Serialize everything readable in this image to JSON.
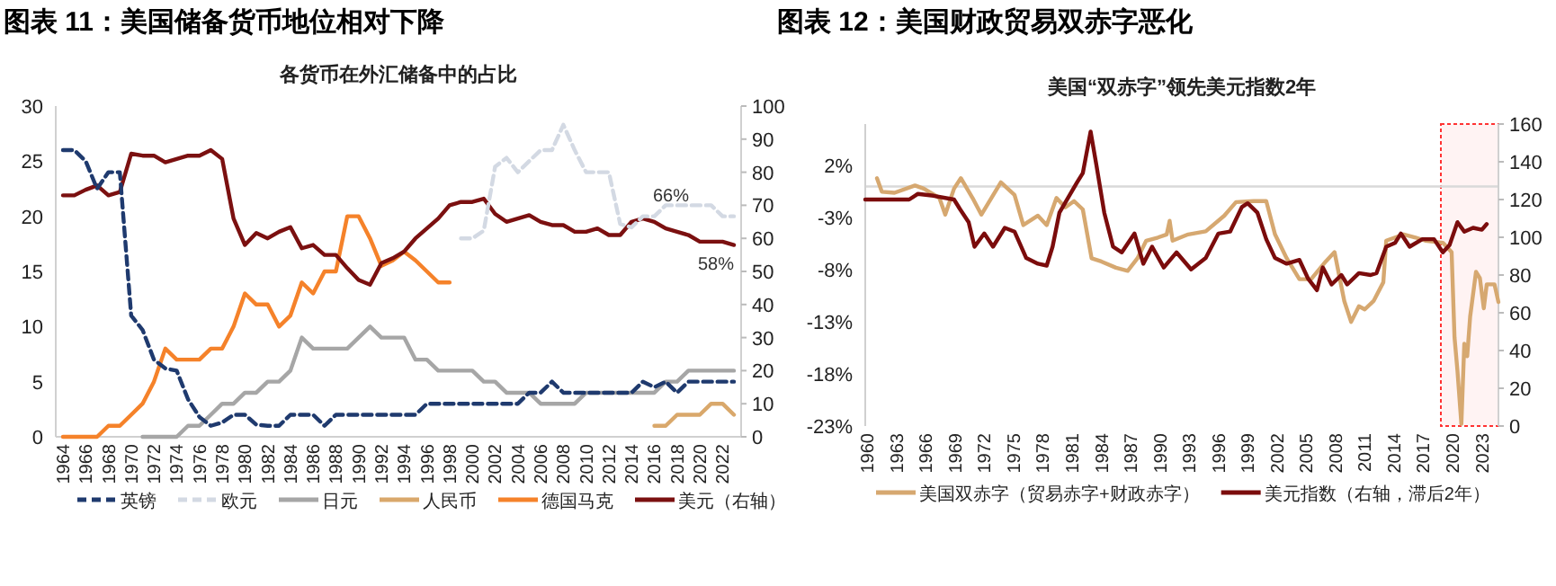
{
  "chart_data": [
    {
      "type": "line",
      "title": "图表 11：美国储备货币地位相对下降",
      "subtitle": "各货币在外汇储备中的占比",
      "categories": [
        "1964",
        null,
        "1966",
        null,
        "1968",
        null,
        "1970",
        null,
        "1972",
        null,
        "1974",
        null,
        "1976",
        null,
        "1978",
        null,
        "1980",
        null,
        "1982",
        null,
        "1984",
        null,
        "1986",
        null,
        "1988",
        null,
        "1990",
        null,
        "1992",
        null,
        "1994",
        null,
        "1996",
        null,
        "1998",
        null,
        "2000",
        null,
        "2002",
        null,
        "2004",
        null,
        "2006",
        null,
        "2008",
        null,
        "2010",
        null,
        "2012",
        null,
        "2014",
        null,
        "2016",
        null,
        "2018",
        null,
        "2020",
        null,
        "2022",
        null
      ],
      "series": [
        {
          "name": "英镑",
          "color": "#1f3a6e",
          "line_style": "dashed",
          "values": [
            26,
            26,
            25,
            22.5,
            24,
            24,
            11,
            9.7,
            7,
            6.2,
            6,
            3.4,
            1.8,
            1,
            1.3,
            2,
            2,
            1.1,
            1,
            1,
            2,
            2,
            2,
            1,
            2,
            2,
            2,
            2,
            2,
            2,
            2,
            2,
            3,
            3,
            3,
            3,
            3,
            3,
            3,
            3,
            3,
            4,
            4,
            5,
            4,
            4,
            4,
            4,
            4,
            4,
            4,
            5,
            4.5,
            5,
            4,
            5,
            5,
            5,
            5,
            5
          ]
        },
        {
          "name": "欧元",
          "color": "#d3d9e3",
          "line_style": "dashed",
          "values": [
            null,
            null,
            null,
            null,
            null,
            null,
            null,
            null,
            null,
            null,
            null,
            null,
            null,
            null,
            null,
            null,
            null,
            null,
            null,
            null,
            null,
            null,
            null,
            null,
            null,
            null,
            null,
            null,
            null,
            null,
            null,
            null,
            null,
            null,
            null,
            18,
            18,
            18.7,
            24.5,
            25.3,
            24,
            25,
            26,
            26,
            28.3,
            26,
            24,
            24,
            24,
            19.3,
            19,
            20,
            20,
            21,
            21,
            21,
            21,
            21,
            20,
            20
          ]
        },
        {
          "name": "日元",
          "color": "#a6a6a6",
          "line_style": "solid",
          "values": [
            null,
            null,
            null,
            null,
            null,
            null,
            null,
            0,
            0,
            0,
            0,
            1,
            1,
            2,
            3,
            3,
            4,
            4,
            5,
            5,
            6,
            9,
            8,
            8,
            8,
            8,
            9,
            10,
            9,
            9,
            9,
            7,
            7,
            6,
            6,
            6,
            6,
            5,
            5,
            4,
            4,
            4,
            3,
            3,
            3,
            3,
            4,
            4,
            4,
            4,
            4,
            4,
            4,
            5,
            5,
            6,
            6,
            6,
            6,
            6
          ]
        },
        {
          "name": "人民币",
          "color": "#d9a86b",
          "line_style": "solid",
          "values": [
            null,
            null,
            null,
            null,
            null,
            null,
            null,
            null,
            null,
            null,
            null,
            null,
            null,
            null,
            null,
            null,
            null,
            null,
            null,
            null,
            null,
            null,
            null,
            null,
            null,
            null,
            null,
            null,
            null,
            null,
            null,
            null,
            null,
            null,
            null,
            null,
            null,
            null,
            null,
            null,
            null,
            null,
            null,
            null,
            null,
            null,
            null,
            null,
            null,
            null,
            null,
            null,
            1,
            1,
            2,
            2,
            2,
            3,
            3,
            2
          ]
        },
        {
          "name": "德国马克",
          "color": "#f5822a",
          "line_style": "solid",
          "values": [
            0,
            0,
            0,
            0,
            1,
            1,
            2,
            3,
            5,
            8,
            7,
            7,
            7,
            8,
            8,
            10,
            13,
            12,
            12,
            10,
            11,
            14,
            13,
            15,
            15,
            20,
            20,
            18,
            15.5,
            16,
            16.8,
            16,
            15,
            14,
            14,
            null,
            null,
            null,
            null,
            null,
            null,
            null,
            null,
            null,
            null,
            null,
            null,
            null,
            null,
            null,
            null,
            null,
            null,
            null,
            null,
            null,
            null,
            null,
            null,
            null
          ]
        },
        {
          "name": "美元（右轴）",
          "color": "#7b1010",
          "line_style": "solid",
          "axis": "y2",
          "values": [
            73,
            73,
            74.7,
            76,
            73,
            74,
            85.6,
            85,
            85,
            83,
            84,
            85,
            85,
            86.7,
            84,
            66,
            58,
            61.6,
            60,
            62,
            63.4,
            57,
            58,
            55,
            55,
            51,
            47.4,
            46,
            52.5,
            54,
            56,
            60,
            63,
            66,
            70,
            71,
            71,
            72,
            67.4,
            65,
            66,
            67,
            65,
            64,
            64,
            62,
            62,
            63,
            61,
            61,
            65,
            66,
            65,
            63,
            62,
            61,
            59,
            59,
            59,
            58
          ]
        }
      ],
      "ylim": [
        0,
        30
      ],
      "yticks": [
        0,
        5,
        10,
        15,
        20,
        25,
        30
      ],
      "y2lim": [
        0,
        100
      ],
      "y2ticks": [
        0,
        10,
        20,
        30,
        40,
        50,
        60,
        70,
        80,
        90,
        100
      ],
      "annotations": [
        "66%",
        "58%"
      ],
      "legend": "bottom"
    },
    {
      "type": "line",
      "title": "图表 12：美国财政贸易双赤字恶化",
      "subtitle": "美国“双赤字”领先美元指数2年",
      "xlim": [
        1959.8,
        2024.7
      ],
      "xticks": [
        1960,
        1963,
        1966,
        1969,
        1972,
        1975,
        1978,
        1981,
        1984,
        1987,
        1990,
        1993,
        1996,
        1999,
        2002,
        2005,
        2008,
        2011,
        2014,
        2017,
        2020,
        2023
      ],
      "ylim": [
        -23,
        6
      ],
      "yticks": [
        {
          "value": -23,
          "label": "-23%"
        },
        {
          "value": -18,
          "label": "-18%"
        },
        {
          "value": -13,
          "label": "-13%"
        },
        {
          "value": -8,
          "label": "-8%"
        },
        {
          "value": -3,
          "label": "-3%"
        },
        {
          "value": 2,
          "label": "2%"
        }
      ],
      "y2lim": [
        0,
        160
      ],
      "y2ticks": [
        0,
        20,
        40,
        60,
        80,
        100,
        120,
        140,
        160
      ],
      "series": [
        {
          "name": "美国双赤字（贸易赤字+财政赤字）",
          "color": "#d6a870",
          "x": [
            1961,
            1961.5,
            1962.8,
            1964.9,
            1965.8,
            1967.4,
            1968,
            1968.9,
            1969.6,
            1970.8,
            1971.7,
            1973.7,
            1975.1,
            1976,
            1977.5,
            1978.4,
            1979.4,
            1980.3,
            1981.2,
            1982.1,
            1983,
            1984,
            1985.5,
            1986.7,
            1987.7,
            1988.6,
            1989.8,
            1990.7,
            1991,
            1991.3,
            1992.9,
            1994.7,
            1996.6,
            1997.8,
            1999.6,
            2000.9,
            2001.8,
            2003,
            2004.3,
            2005.5,
            2007,
            2007.9,
            2008.9,
            2009.6,
            2010.4,
            2011,
            2011.9,
            2012.9,
            2013.2,
            2015,
            2016.2,
            2017.2,
            2019,
            2019.9,
            2020.2,
            2020.5,
            2020.9,
            2021.2,
            2021.5,
            2021.8,
            2022.4,
            2022.8,
            2023.2,
            2023.5,
            2024.3,
            2024.7
          ],
          "values": [
            0.8,
            -0.5,
            -0.6,
            0.1,
            -0.2,
            -1.1,
            -2.7,
            -0.2,
            0.8,
            -1.1,
            -2.7,
            0.4,
            -0.8,
            -3.7,
            -2.8,
            -3.7,
            -1.1,
            -2,
            -1.4,
            -2.2,
            -6.9,
            -7.2,
            -7.8,
            -8.1,
            -6.9,
            -5.2,
            -4.9,
            -4.6,
            -3.3,
            -5.2,
            -4.6,
            -4.3,
            -2.8,
            -1.5,
            -1.4,
            -1.4,
            -4.6,
            -6.9,
            -8.9,
            -8.9,
            -7.2,
            -6.3,
            -11,
            -13,
            -11.5,
            -11.8,
            -11,
            -9.2,
            -5.2,
            -4.6,
            -4.9,
            -5.2,
            -5.4,
            -6.3,
            -14.5,
            -17.7,
            -22.8,
            -15.1,
            -16.3,
            -12.5,
            -8.2,
            -8.8,
            -11.7,
            -9.4,
            -9.4,
            -11.1
          ]
        },
        {
          "name": "美元指数（右轴，滞后2年）",
          "color": "#7b0c0c",
          "axis": "y2",
          "x": [
            1959.8,
            1964.3,
            1965.2,
            1966.8,
            1968.9,
            1969.5,
            1970.4,
            1971,
            1972,
            1972.9,
            1974.1,
            1975.1,
            1976.3,
            1977.5,
            1978.4,
            1979,
            1979.7,
            1980.6,
            1981.5,
            1982.1,
            1982.9,
            1983.5,
            1984.3,
            1985.2,
            1986.1,
            1987.4,
            1988.3,
            1989.2,
            1990.4,
            1991.7,
            1993.2,
            1994.7,
            1996,
            1997.2,
            1998.4,
            1999,
            2000,
            2000.9,
            2001.8,
            2003,
            2004.3,
            2005.2,
            2006.1,
            2006.7,
            2007.6,
            2008.6,
            2009.2,
            2010.4,
            2011.6,
            2012.2,
            2013.2,
            2014.1,
            2014.7,
            2015.6,
            2016.9,
            2018.1,
            2019,
            2019.7,
            2020.5,
            2021.2,
            2022.1,
            2023,
            2023.5
          ],
          "values": [
            120,
            120,
            123,
            122,
            120,
            115,
            108,
            95,
            102,
            95,
            105,
            103,
            89,
            86,
            85,
            95,
            113,
            121,
            129,
            134,
            156,
            138,
            113,
            95,
            92,
            102,
            86,
            95,
            84,
            92,
            83,
            89,
            102,
            103,
            116,
            118,
            113,
            99,
            89,
            86,
            88,
            78,
            72,
            84,
            75,
            80,
            75,
            81,
            80,
            81,
            95,
            97,
            102,
            95,
            99,
            99,
            92,
            96,
            108,
            103,
            105,
            104,
            107
          ]
        }
      ],
      "ref_lines": [
        {
          "axis": "y",
          "value": 0,
          "color": "#d9d9d9"
        }
      ],
      "bands": [
        {
          "axis": "x",
          "from": 2018.8,
          "to": 2024.7,
          "color": "#ff3333"
        }
      ],
      "legend": "bottom"
    }
  ]
}
